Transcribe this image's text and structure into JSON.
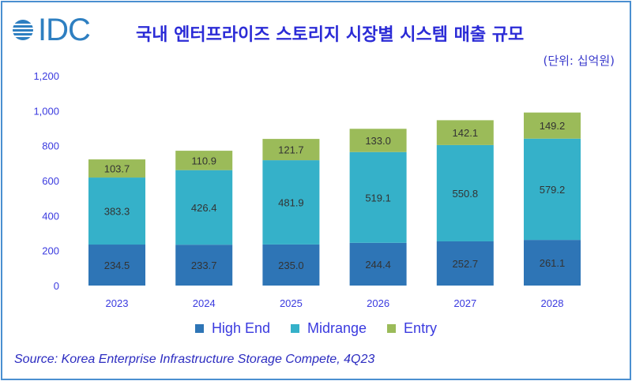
{
  "logo": {
    "text": "IDC"
  },
  "title": "국내 엔터프라이즈 스토리지 시장별 시스템 매출 규모",
  "unit_note": "(단위: 십억원)",
  "source": "Source: Korea Enterprise Infrastructure Storage Compete, 4Q23",
  "colors": {
    "high_end": "#2e75b6",
    "midrange": "#35b1c9",
    "entry": "#9bbb59",
    "text": "#3a3adf"
  },
  "chart_data": {
    "type": "bar",
    "stacked": true,
    "categories": [
      "2023",
      "2024",
      "2025",
      "2026",
      "2027",
      "2028"
    ],
    "series": [
      {
        "name": "High End",
        "values": [
          234.5,
          233.7,
          235.0,
          244.4,
          252.7,
          261.1
        ],
        "labels": [
          "234.5",
          "233.7",
          "235.0",
          "244.4",
          "252.7",
          "261.1"
        ]
      },
      {
        "name": "Midrange",
        "values": [
          383.3,
          426.4,
          481.9,
          519.1,
          550.8,
          579.2
        ],
        "labels": [
          "383.3",
          "426.4",
          "481.9",
          "519.1",
          "550.8",
          "579.2"
        ]
      },
      {
        "name": "Entry",
        "values": [
          103.7,
          110.9,
          121.7,
          133.0,
          142.1,
          149.2
        ],
        "labels": [
          "103.7",
          "110.9",
          "121.7",
          "133.0",
          "142.1",
          "149.2"
        ]
      }
    ],
    "yticks": [
      "0",
      "200",
      "400",
      "600",
      "800",
      "1,000",
      "1,200"
    ],
    "ylim": [
      0,
      1200
    ],
    "grid": false,
    "legend": "bottom"
  }
}
